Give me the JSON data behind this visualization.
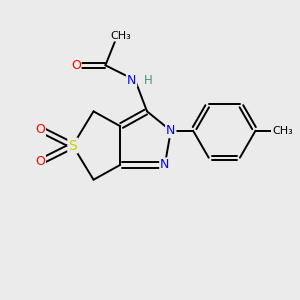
{
  "bg_color": "#ebebeb",
  "bond_color": "#000000",
  "atom_colors": {
    "O": "#ff0000",
    "N": "#0000ff",
    "S": "#cccc00",
    "H": "#4a9090",
    "C": "#000000"
  },
  "figsize": [
    3.0,
    3.0
  ],
  "dpi": 100
}
